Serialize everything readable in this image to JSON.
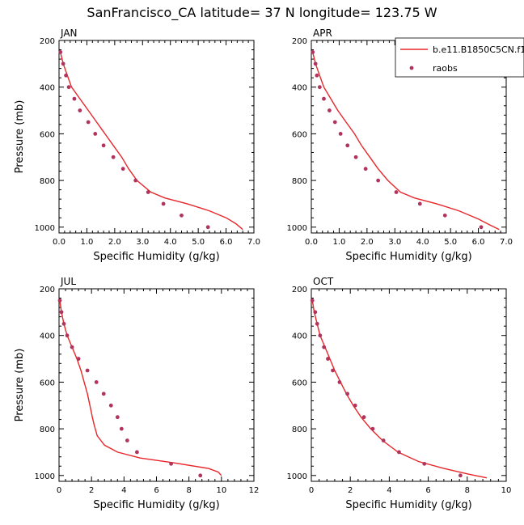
{
  "title": "SanFrancisco_CA  latitude= 37 N longitude= 123.75 W",
  "colors": {
    "model": "#e8262a",
    "obs": "#b0345c",
    "axis": "#000000"
  },
  "legend": {
    "model_label": "b.e11.B1850C5CN.f19",
    "obs_label": "raobs",
    "placement": "top-right of APR panel"
  },
  "chart_data": [
    {
      "type": "line",
      "panel": "JAN",
      "title": "JAN",
      "xlabel": "Specific Humidity (g/kg)",
      "ylabel": "Pressure (mb)",
      "xlim": [
        0,
        7
      ],
      "ylim": [
        1025,
        200
      ],
      "y_inverted": true,
      "xticks": [
        0,
        1,
        2,
        3,
        4,
        5,
        6,
        7
      ],
      "xticklabels": [
        "0.0",
        "1.0",
        "2.0",
        "3.0",
        "4.0",
        "5.0",
        "6.0",
        "7.0"
      ],
      "yticks": [
        200,
        400,
        600,
        800,
        1000
      ],
      "yticklabels": [
        "200",
        "400",
        "600",
        "800",
        "1000"
      ],
      "series": [
        {
          "name": "b.e11.B1850C5CN.f19",
          "kind": "line",
          "points": [
            [
              0.05,
              250
            ],
            [
              0.15,
              300
            ],
            [
              0.3,
              350
            ],
            [
              0.45,
              400
            ],
            [
              0.75,
              450
            ],
            [
              1.05,
              500
            ],
            [
              1.35,
              550
            ],
            [
              1.65,
              600
            ],
            [
              1.95,
              650
            ],
            [
              2.25,
              700
            ],
            [
              2.5,
              750
            ],
            [
              2.8,
              800
            ],
            [
              3.3,
              850
            ],
            [
              3.8,
              875
            ],
            [
              4.6,
              900
            ],
            [
              5.4,
              930
            ],
            [
              6.0,
              960
            ],
            [
              6.35,
              985
            ],
            [
              6.6,
              1010
            ]
          ]
        },
        {
          "name": "raobs",
          "kind": "points",
          "points": [
            [
              0.05,
              250
            ],
            [
              0.15,
              300
            ],
            [
              0.25,
              350
            ],
            [
              0.35,
              400
            ],
            [
              0.55,
              450
            ],
            [
              0.75,
              500
            ],
            [
              1.05,
              550
            ],
            [
              1.3,
              600
            ],
            [
              1.6,
              650
            ],
            [
              1.95,
              700
            ],
            [
              2.3,
              750
            ],
            [
              2.75,
              800
            ],
            [
              3.2,
              850
            ],
            [
              3.75,
              900
            ],
            [
              4.4,
              950
            ],
            [
              5.35,
              1000
            ]
          ]
        }
      ]
    },
    {
      "type": "line",
      "panel": "APR",
      "title": "APR",
      "xlabel": "Specific Humidity (g/kg)",
      "ylabel": "",
      "xlim": [
        0,
        7
      ],
      "ylim": [
        1025,
        200
      ],
      "y_inverted": true,
      "xticks": [
        0,
        1,
        2,
        3,
        4,
        5,
        6,
        7
      ],
      "xticklabels": [
        "0.0",
        "1.0",
        "2.0",
        "3.0",
        "4.0",
        "5.0",
        "6.0",
        "7.0"
      ],
      "yticks": [
        200,
        400,
        600,
        800,
        1000
      ],
      "yticklabels": [
        "200",
        "400",
        "600",
        "800",
        "1000"
      ],
      "series": [
        {
          "name": "b.e11.B1850C5CN.f19",
          "kind": "line",
          "points": [
            [
              0.05,
              250
            ],
            [
              0.15,
              300
            ],
            [
              0.3,
              350
            ],
            [
              0.45,
              400
            ],
            [
              0.7,
              450
            ],
            [
              0.95,
              500
            ],
            [
              1.25,
              550
            ],
            [
              1.55,
              600
            ],
            [
              1.8,
              650
            ],
            [
              2.1,
              700
            ],
            [
              2.4,
              750
            ],
            [
              2.75,
              800
            ],
            [
              3.2,
              850
            ],
            [
              3.7,
              875
            ],
            [
              4.5,
              900
            ],
            [
              5.3,
              930
            ],
            [
              6.0,
              965
            ],
            [
              6.4,
              990
            ],
            [
              6.75,
              1010
            ]
          ]
        },
        {
          "name": "raobs",
          "kind": "points",
          "points": [
            [
              0.05,
              250
            ],
            [
              0.15,
              300
            ],
            [
              0.2,
              350
            ],
            [
              0.3,
              400
            ],
            [
              0.45,
              450
            ],
            [
              0.65,
              500
            ],
            [
              0.85,
              550
            ],
            [
              1.05,
              600
            ],
            [
              1.3,
              650
            ],
            [
              1.6,
              700
            ],
            [
              1.95,
              750
            ],
            [
              2.4,
              800
            ],
            [
              3.05,
              850
            ],
            [
              3.9,
              900
            ],
            [
              4.8,
              950
            ],
            [
              6.1,
              1000
            ]
          ]
        }
      ]
    },
    {
      "type": "line",
      "panel": "JUL",
      "title": "JUL",
      "xlabel": "Specific Humidity (g/kg)",
      "ylabel": "Pressure (mb)",
      "xlim": [
        0,
        12
      ],
      "ylim": [
        1025,
        200
      ],
      "y_inverted": true,
      "xticks": [
        0,
        2,
        4,
        6,
        8,
        10,
        12
      ],
      "xticklabels": [
        "0",
        "2",
        "4",
        "6",
        "8",
        "10",
        "12"
      ],
      "yticks": [
        200,
        400,
        600,
        800,
        1000
      ],
      "yticklabels": [
        "200",
        "400",
        "600",
        "800",
        "1000"
      ],
      "series": [
        {
          "name": "b.e11.B1850C5CN.f19",
          "kind": "line",
          "points": [
            [
              0.05,
              250
            ],
            [
              0.15,
              300
            ],
            [
              0.3,
              350
            ],
            [
              0.5,
              400
            ],
            [
              0.8,
              450
            ],
            [
              1.1,
              500
            ],
            [
              1.35,
              550
            ],
            [
              1.55,
              600
            ],
            [
              1.75,
              650
            ],
            [
              1.9,
              700
            ],
            [
              2.05,
              750
            ],
            [
              2.15,
              780
            ],
            [
              2.35,
              830
            ],
            [
              2.8,
              870
            ],
            [
              3.6,
              900
            ],
            [
              5.0,
              925
            ],
            [
              7.0,
              945
            ],
            [
              9.2,
              970
            ],
            [
              9.8,
              985
            ],
            [
              10.0,
              1000
            ]
          ]
        },
        {
          "name": "raobs",
          "kind": "points",
          "points": [
            [
              0.05,
              250
            ],
            [
              0.15,
              300
            ],
            [
              0.3,
              350
            ],
            [
              0.5,
              400
            ],
            [
              0.8,
              450
            ],
            [
              1.2,
              500
            ],
            [
              1.75,
              550
            ],
            [
              2.3,
              600
            ],
            [
              2.75,
              650
            ],
            [
              3.2,
              700
            ],
            [
              3.6,
              750
            ],
            [
              3.85,
              800
            ],
            [
              4.2,
              850
            ],
            [
              4.8,
              900
            ],
            [
              6.9,
              950
            ],
            [
              8.7,
              1000
            ]
          ]
        }
      ]
    },
    {
      "type": "line",
      "panel": "OCT",
      "title": "OCT",
      "xlabel": "Specific Humidity (g/kg)",
      "ylabel": "",
      "xlim": [
        0,
        10
      ],
      "ylim": [
        1025,
        200
      ],
      "y_inverted": true,
      "xticks": [
        0,
        2,
        4,
        6,
        8,
        10
      ],
      "xticklabels": [
        "0",
        "2",
        "4",
        "6",
        "8",
        "10"
      ],
      "yticks": [
        200,
        400,
        600,
        800,
        1000
      ],
      "yticklabels": [
        "200",
        "400",
        "600",
        "800",
        "1000"
      ],
      "series": [
        {
          "name": "b.e11.B1850C5CN.f19",
          "kind": "line",
          "points": [
            [
              0.05,
              250
            ],
            [
              0.15,
              300
            ],
            [
              0.3,
              350
            ],
            [
              0.45,
              400
            ],
            [
              0.7,
              450
            ],
            [
              0.95,
              500
            ],
            [
              1.2,
              550
            ],
            [
              1.5,
              600
            ],
            [
              1.8,
              650
            ],
            [
              2.15,
              700
            ],
            [
              2.55,
              750
            ],
            [
              3.05,
              800
            ],
            [
              3.65,
              850
            ],
            [
              4.45,
              900
            ],
            [
              5.5,
              940
            ],
            [
              6.8,
              970
            ],
            [
              8.1,
              995
            ],
            [
              9.0,
              1010
            ]
          ]
        },
        {
          "name": "raobs",
          "kind": "points",
          "points": [
            [
              0.05,
              250
            ],
            [
              0.2,
              300
            ],
            [
              0.3,
              350
            ],
            [
              0.45,
              400
            ],
            [
              0.65,
              450
            ],
            [
              0.85,
              500
            ],
            [
              1.1,
              550
            ],
            [
              1.45,
              600
            ],
            [
              1.85,
              650
            ],
            [
              2.25,
              700
            ],
            [
              2.7,
              750
            ],
            [
              3.15,
              800
            ],
            [
              3.7,
              850
            ],
            [
              4.5,
              900
            ],
            [
              5.8,
              950
            ],
            [
              7.65,
              1000
            ]
          ]
        }
      ]
    }
  ]
}
